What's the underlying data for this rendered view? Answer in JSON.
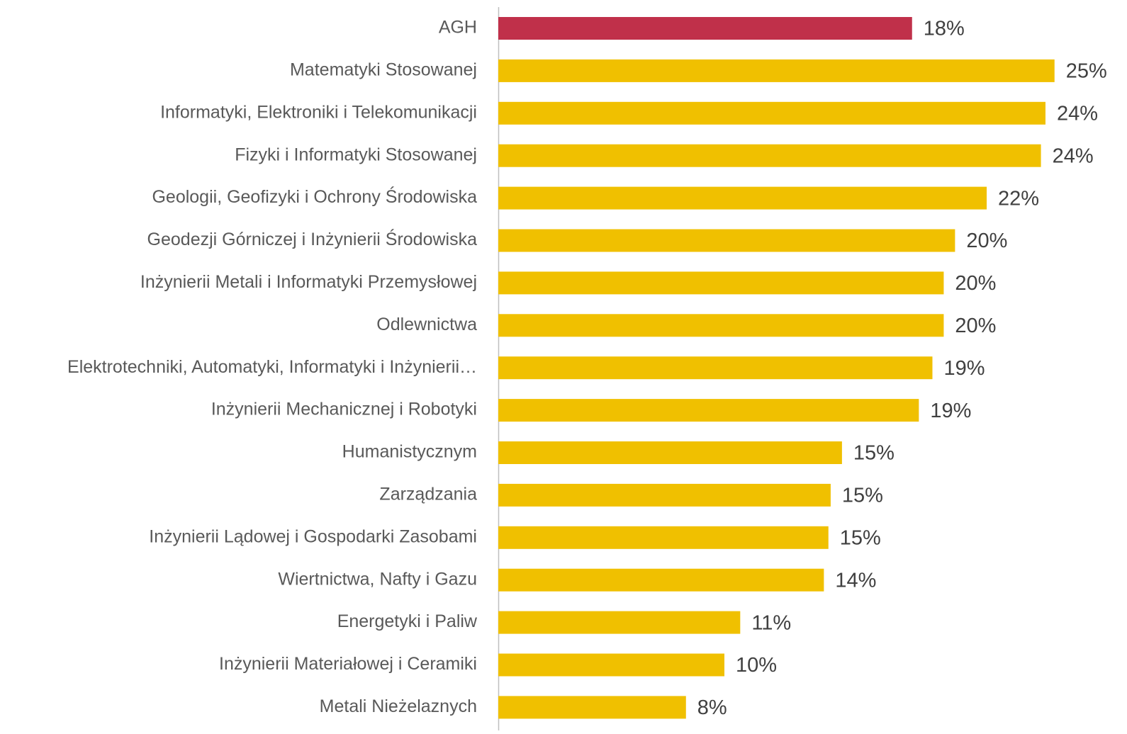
{
  "chart_data": {
    "type": "barh",
    "categories": [
      "AGH",
      "Matematyki Stosowanej",
      "Informatyki, Elektroniki i Telekomunikacji",
      "Fizyki i Informatyki Stosowanej",
      "Geologii, Geofizyki i Ochrony Środowiska",
      "Geodezji Górniczej i Inżynierii Środowiska",
      "Inżynierii Metali i Informatyki Przemysłowej",
      "Odlewnictwa",
      "Elektrotechniki, Automatyki, Informatyki i Inżynierii…",
      "Inżynierii Mechanicznej i Robotyki",
      "Humanistycznym",
      "Zarządzania",
      "Inżynierii Lądowej i Gospodarki Zasobami",
      "Wiertnictwa, Nafty i Gazu",
      "Energetyki i Paliw",
      "Inżynierii Materiałowej i Ceramiki",
      "Metali Nieżelaznych"
    ],
    "values": [
      18.3,
      24.6,
      24.2,
      24.0,
      21.6,
      20.2,
      19.7,
      19.7,
      19.2,
      18.6,
      15.2,
      14.7,
      14.6,
      14.4,
      10.7,
      10.0,
      8.3
    ],
    "value_labels": [
      "18%",
      "25%",
      "24%",
      "24%",
      "22%",
      "20%",
      "20%",
      "20%",
      "19%",
      "19%",
      "15%",
      "15%",
      "15%",
      "14%",
      "11%",
      "10%",
      "8%"
    ],
    "colors": [
      "#c0304a",
      "#f0c000",
      "#f0c000",
      "#f0c000",
      "#f0c000",
      "#f0c000",
      "#f0c000",
      "#f0c000",
      "#f0c000",
      "#f0c000",
      "#f0c000",
      "#f0c000",
      "#f0c000",
      "#f0c000",
      "#f0c000",
      "#f0c000",
      "#f0c000"
    ],
    "xlim": [
      0,
      26
    ]
  }
}
